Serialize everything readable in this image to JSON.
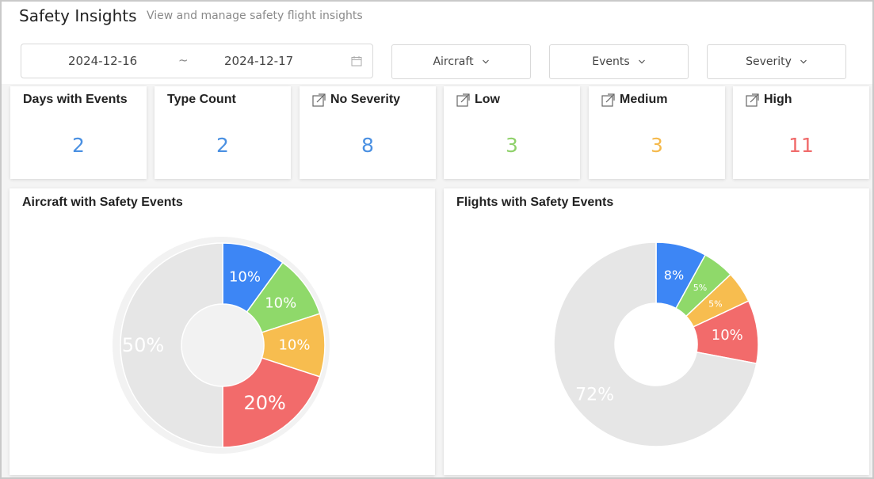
{
  "header": {
    "title": "Safety Insights",
    "subtitle": "View and manage safety flight insights"
  },
  "filters": {
    "date_start": "2024-12-16",
    "date_separator": "~",
    "date_end": "2024-12-17",
    "aircraft_label": "Aircraft",
    "events_label": "Events",
    "severity_label": "Severity"
  },
  "cards": [
    {
      "label": "Days with Events",
      "value": "2",
      "color": "#4a90e2",
      "icon": "none"
    },
    {
      "label": "Type Count",
      "value": "2",
      "color": "#4a90e2",
      "icon": "none"
    },
    {
      "label": "No Severity",
      "value": "8",
      "color": "#4a90e2",
      "icon": "external-link-icon"
    },
    {
      "label": "Low",
      "value": "3",
      "color": "#8fd16a",
      "icon": "external-link-icon"
    },
    {
      "label": "Medium",
      "value": "3",
      "color": "#f5b94b",
      "icon": "external-link-icon"
    },
    {
      "label": "High",
      "value": "11",
      "color": "#f06b6b",
      "icon": "external-link-icon"
    }
  ],
  "chart_data": [
    {
      "type": "pie",
      "title": "Aircraft with Safety Events",
      "values": [
        10,
        10,
        10,
        20,
        50
      ],
      "labels": [
        "10%",
        "10%",
        "10%",
        "20%",
        "50%"
      ],
      "colors": [
        "#3d86f5",
        "#8fd96a",
        "#f7bd4f",
        "#f26b6b",
        "#e6e6e6"
      ]
    },
    {
      "type": "pie",
      "title": "Flights with Safety Events",
      "values": [
        8,
        5,
        5,
        10,
        72
      ],
      "labels": [
        "8%",
        "5%",
        "5%",
        "10%",
        "72%"
      ],
      "colors": [
        "#3d86f5",
        "#8fd96a",
        "#f7bd4f",
        "#f26b6b",
        "#e6e6e6"
      ]
    }
  ]
}
